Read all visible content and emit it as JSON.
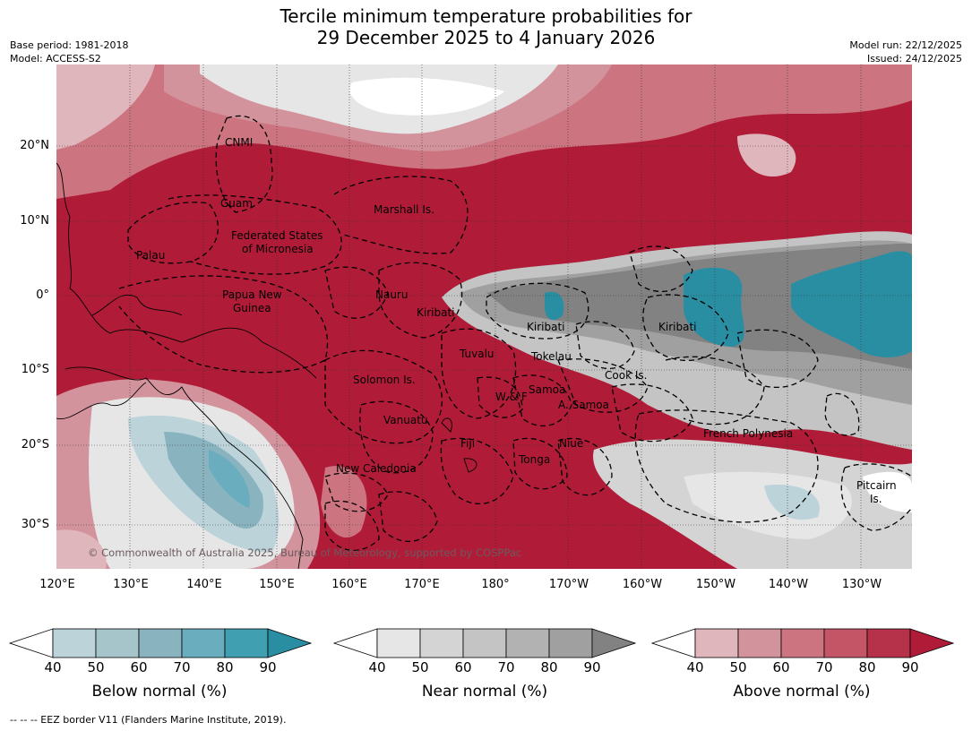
{
  "title": {
    "line1": "Tercile minimum temperature probabilities for",
    "line2": "29 December 2025 to 4 January 2026"
  },
  "meta_left": {
    "base_period": "Base period: 1981-2018",
    "model": "Model: ACCESS-S2"
  },
  "meta_right": {
    "model_run": "Model run: 22/12/2025",
    "issued": "Issued: 24/12/2025"
  },
  "axes": {
    "lat_labels": [
      "20°N",
      "10°N",
      "0°",
      "10°S",
      "20°S",
      "30°S"
    ],
    "lon_labels": [
      "120°E",
      "130°E",
      "140°E",
      "150°E",
      "160°E",
      "170°E",
      "180°",
      "170°W",
      "160°W",
      "150°W",
      "140°W",
      "130°W"
    ]
  },
  "regions": [
    "CNMI",
    "Guam",
    "Marshall Is.",
    "Federated States",
    "of Micronesia",
    "Palau",
    "Papua New",
    "Guinea",
    "Nauru",
    "Kiribati",
    "Kiribati",
    "Kiribati",
    "Tuvalu",
    "Tokelau",
    "Cook Is.",
    "Solomon Is.",
    "Samoa",
    "W & F",
    "A. Samoa",
    "Vanuatu",
    "Fiji",
    "Niue",
    "Tonga",
    "French Polynesia",
    "New Caledonia",
    "Pitcairn",
    "Is."
  ],
  "copyright": "© Commonwealth of Australia 2025, Bureau of Meteorology, supported by COSPPac",
  "colorbars": [
    {
      "title": "Below normal (%)",
      "ticks": [
        "40",
        "50",
        "60",
        "70",
        "80",
        "90"
      ],
      "colors": [
        "#ffffff",
        "#bcd3da",
        "#a5c5cb",
        "#8ab3c0",
        "#6aadbe",
        "#40a0b2",
        "#2a8ea3"
      ]
    },
    {
      "title": "Near normal (%)",
      "ticks": [
        "40",
        "50",
        "60",
        "70",
        "80",
        "90"
      ],
      "colors": [
        "#ffffff",
        "#e6e6e6",
        "#d4d4d4",
        "#c4c4c4",
        "#b2b2b2",
        "#a0a0a0",
        "#828282"
      ]
    },
    {
      "title": "Above normal (%)",
      "ticks": [
        "40",
        "50",
        "60",
        "70",
        "80",
        "90"
      ],
      "colors": [
        "#ffffff",
        "#e0b6bd",
        "#d3939d",
        "#cc7480",
        "#c35566",
        "#b6324a",
        "#b01c38"
      ]
    }
  ],
  "footnote": "--  --  -- EEZ border V11 (Flanders Marine Institute, 2019)."
}
